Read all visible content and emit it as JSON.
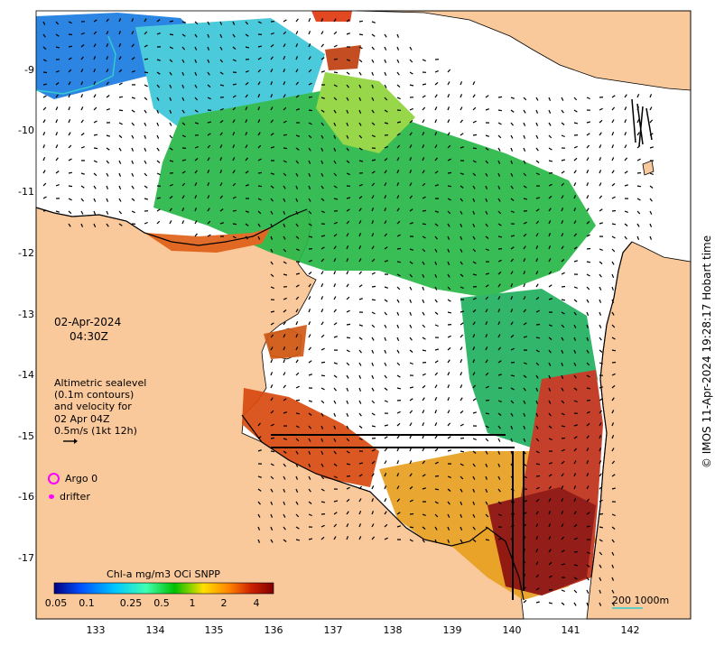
{
  "map": {
    "date": "02-Apr-2024",
    "time": "04:30Z",
    "altimetry_note": [
      "Altimetric sealevel",
      "(0.1m contours)",
      "and velocity for",
      "02 Apr 04Z",
      "0.5m/s (1kt 12h)"
    ],
    "legend": {
      "argo": "Argo 0",
      "drifter": "drifter",
      "argo_color": "#ff00ff",
      "drifter_color": "#ff00ff"
    },
    "colorbar": {
      "title": "Chl-a mg/m3 OCi SNPP",
      "ticks": [
        "0.05",
        "0.1",
        "0.25",
        "0.5",
        "1",
        "2",
        "4"
      ],
      "colors": [
        "#00007f",
        "#0050ff",
        "#00c8ff",
        "#40ffb0",
        "#00c000",
        "#ffe000",
        "#ff8000",
        "#cc2000",
        "#800000"
      ]
    },
    "scale": {
      "label": "200  1000m",
      "color": "#33cccc"
    },
    "credit": "© IMOS 11-Apr-2024 19:28:17 Hobart time",
    "lon_ticks": [
      "133",
      "134",
      "135",
      "136",
      "137",
      "138",
      "139",
      "140",
      "141",
      "142"
    ],
    "lat_ticks": [
      "-9",
      "-10",
      "-11",
      "-12",
      "-13",
      "-14",
      "-15",
      "-16",
      "-17"
    ],
    "colors": {
      "land": "#f9c89b",
      "water_bg": "#ffffff",
      "coast": "#000000",
      "arrow": "#000000"
    }
  }
}
